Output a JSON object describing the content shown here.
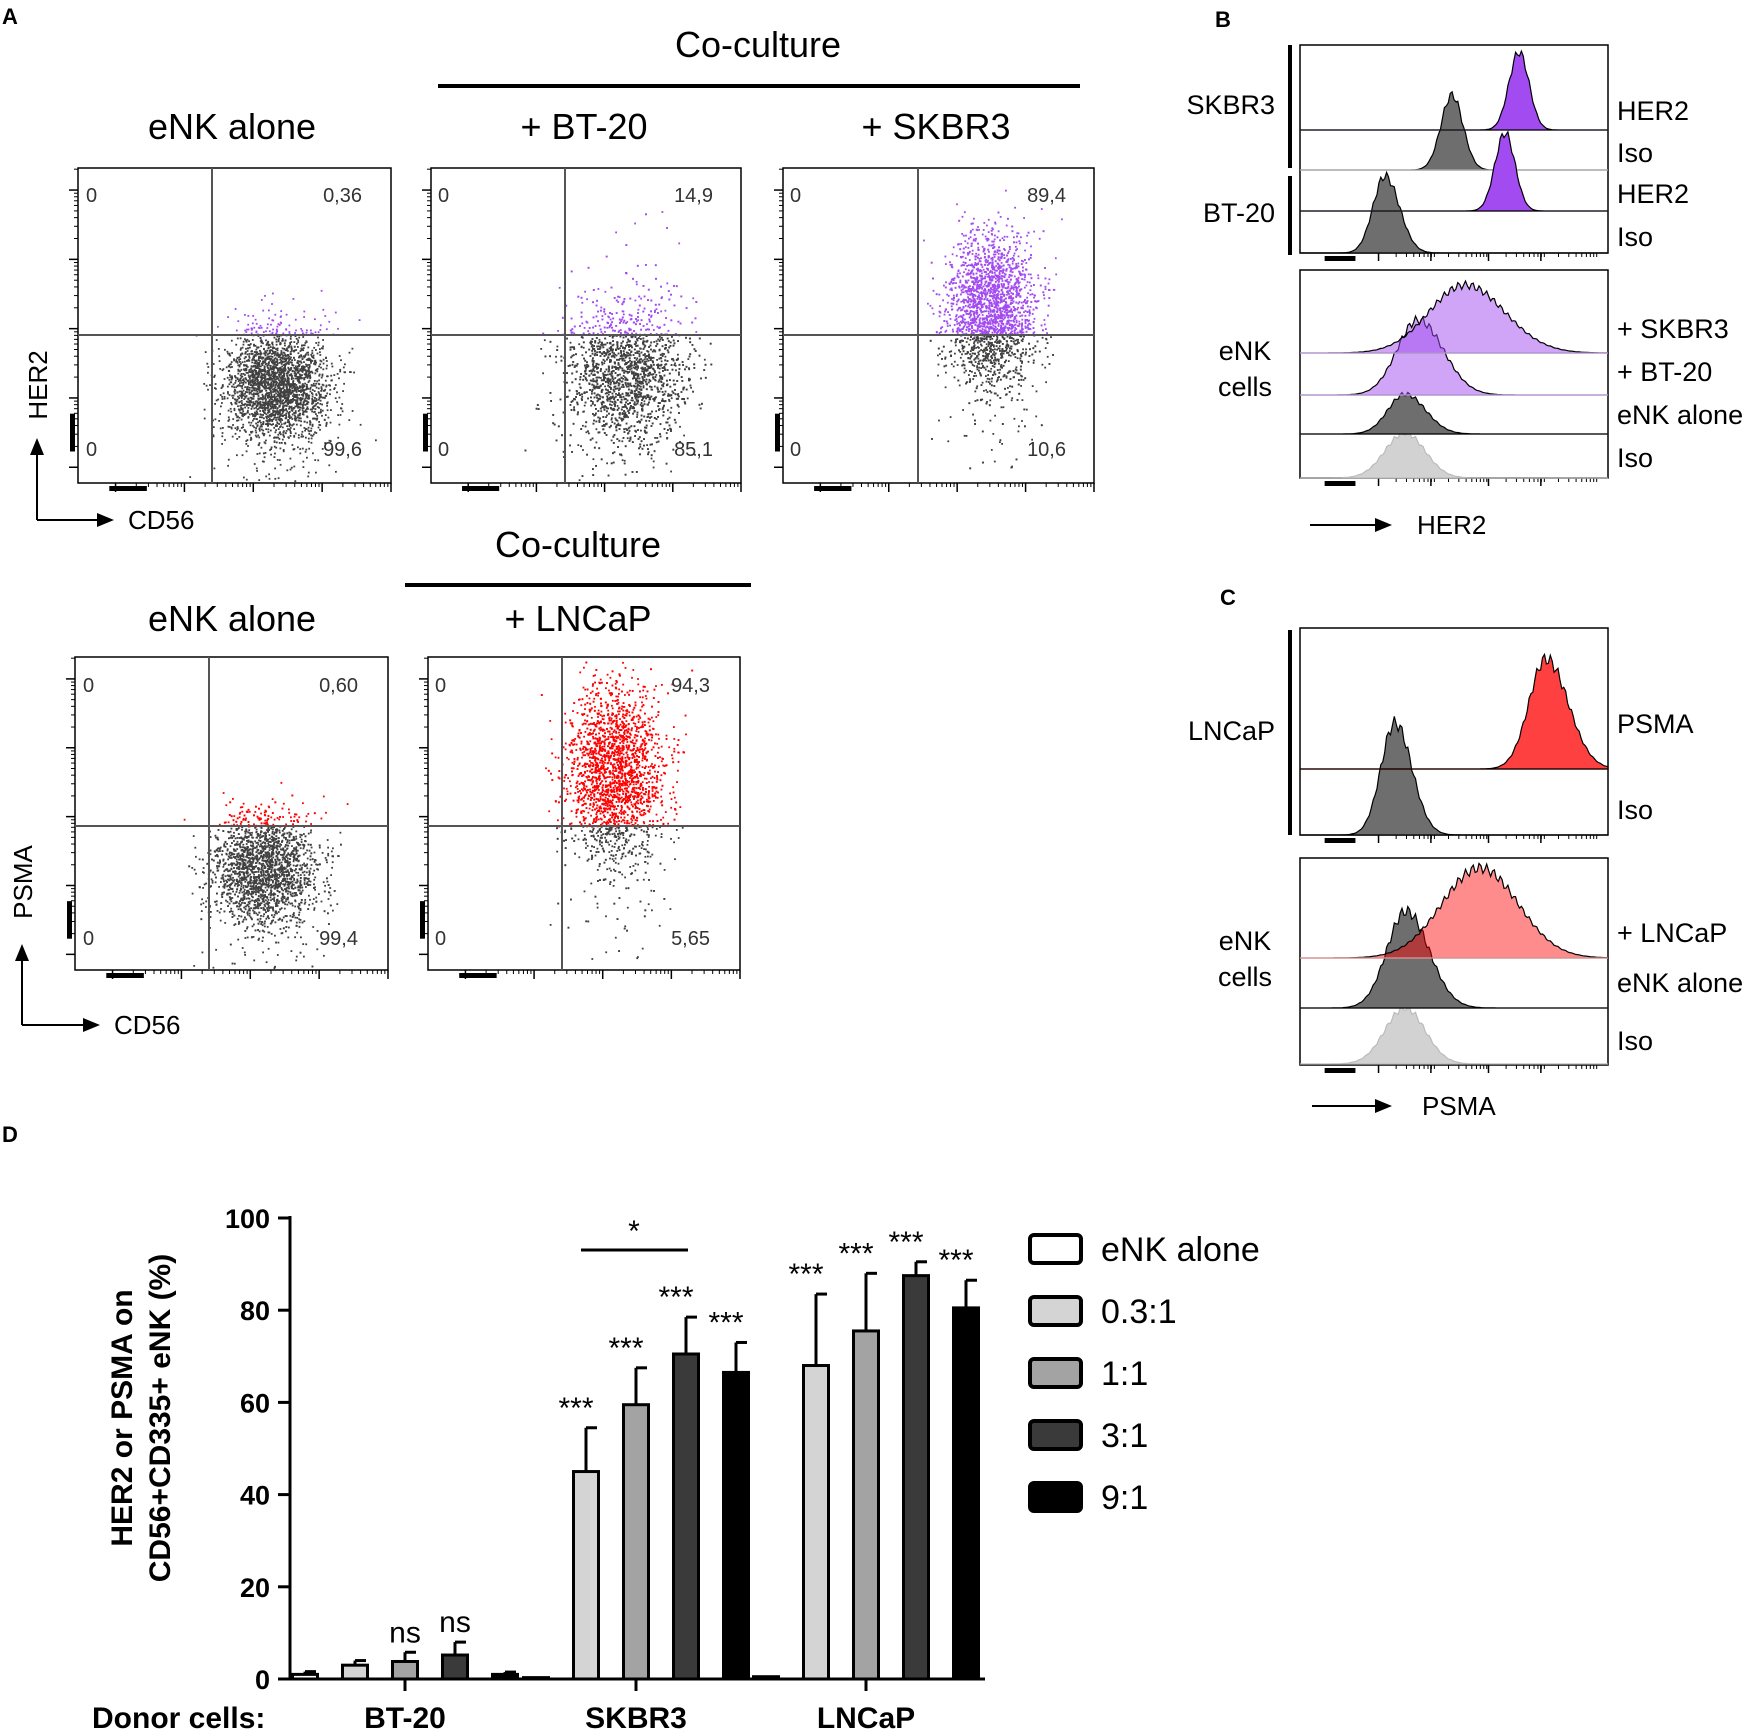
{
  "panels": {
    "a": "A",
    "b": "B",
    "c": "C",
    "d": "D"
  },
  "colors": {
    "gray_dots": "#404040",
    "her2_purple": "#a24bf0",
    "psma_red": "#ff0000",
    "hist_dark": "#6e6e6e",
    "hist_light": "#d2d2d2"
  },
  "panel_a": {
    "coculture_label": "Co-culture",
    "y_markers": {
      "her2": "HER2",
      "psma": "PSMA"
    },
    "x_marker": "CD56",
    "her2_plots": [
      {
        "title": "eNK alone",
        "ul": "0",
        "ur": "0,36",
        "ll": "0",
        "lr": "99,6"
      },
      {
        "title": "+ BT-20",
        "ul": "0",
        "ur": "14,9",
        "ll": "0",
        "lr": "85,1"
      },
      {
        "title": "+ SKBR3",
        "ul": "0",
        "ur": "89,4",
        "ll": "0",
        "lr": "10,6"
      }
    ],
    "psma_plots": [
      {
        "title": "eNK alone",
        "ul": "0",
        "ur": "0,60",
        "ll": "0",
        "lr": "99,4"
      },
      {
        "title": "+ LNCaP",
        "ul": "0",
        "ur": "94,3",
        "ll": "0",
        "lr": "5,65"
      }
    ]
  },
  "panel_b": {
    "top_groups": [
      "SKBR3",
      "BT-20"
    ],
    "top_labels": [
      "HER2",
      "Iso",
      "HER2",
      "Iso"
    ],
    "bottom_group": [
      "eNK",
      "cells"
    ],
    "bottom_labels": [
      "+ SKBR3",
      "+ BT-20",
      "eNK alone",
      "Iso"
    ],
    "x_marker": "HER2"
  },
  "panel_c": {
    "top_group": "LNCaP",
    "top_labels": [
      "PSMA",
      "Iso"
    ],
    "bottom_group": [
      "eNK",
      "cells"
    ],
    "bottom_labels": [
      "+ LNCaP",
      "eNK alone",
      "Iso"
    ],
    "x_marker": "PSMA"
  },
  "chart_data": {
    "type": "bar",
    "title": "",
    "xlabel": "Donor cells:",
    "ylabel": "HER2 or PSMA on CD56+CD335+ eNK (%)",
    "ylabel_lines": [
      "HER2 or PSMA on",
      "CD56+CD335+ eNK (%)"
    ],
    "ylim": [
      0,
      100
    ],
    "yticks": [
      "0",
      "20",
      "40",
      "60",
      "80",
      "100"
    ],
    "categories": [
      "BT-20",
      "SKBR3",
      "LNCaP"
    ],
    "series": [
      {
        "name": "eNK alone",
        "color": "#ffffff",
        "values": [
          1.0,
          0.3,
          0.5
        ],
        "errors": [
          0.6,
          0,
          0
        ]
      },
      {
        "name": "0.3:1",
        "color": "#d4d4d4",
        "values": [
          3.0,
          45.0,
          68.0
        ],
        "errors": [
          1.0,
          9.5,
          15.5
        ]
      },
      {
        "name": "1:1",
        "color": "#a3a3a3",
        "values": [
          3.8,
          59.5,
          75.5
        ],
        "errors": [
          2.0,
          8.0,
          12.5
        ]
      },
      {
        "name": "3:1",
        "color": "#3a3a3a",
        "values": [
          5.2,
          70.5,
          87.5
        ],
        "errors": [
          2.8,
          8.0,
          3.0
        ]
      },
      {
        "name": "9:1",
        "color": "#000000",
        "values": [
          1.0,
          66.5,
          80.5
        ],
        "errors": [
          0.5,
          6.5,
          6.0
        ]
      }
    ],
    "annotations": {
      "BT-20": [
        "",
        "",
        "ns",
        "ns",
        ""
      ],
      "SKBR3": [
        "",
        "***",
        "***",
        "***",
        "***"
      ],
      "LNCaP": [
        "",
        "***",
        "***",
        "***",
        "***"
      ],
      "bracket": "*"
    }
  }
}
